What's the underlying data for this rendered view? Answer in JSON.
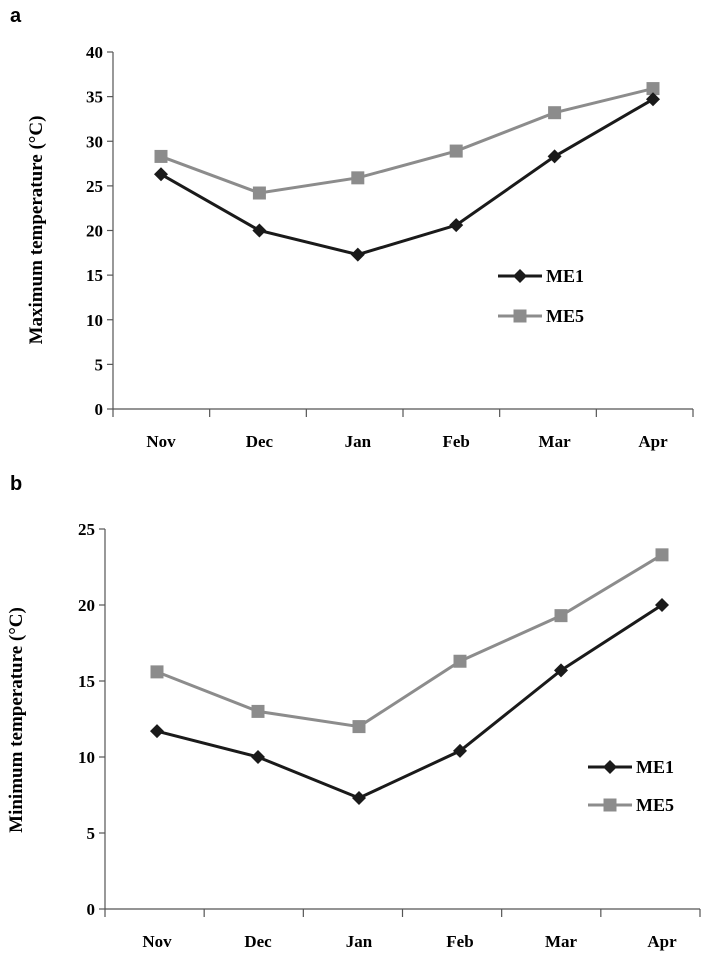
{
  "chart_data": [
    {
      "type": "line",
      "panel_label": "a",
      "categories": [
        "Nov",
        "Dec",
        "Jan",
        "Feb",
        "Mar",
        "Apr"
      ],
      "series": [
        {
          "name": "ME1",
          "values": [
            26.3,
            20.0,
            17.3,
            20.6,
            28.3,
            34.7
          ],
          "color": "#1a1a1a",
          "marker": "diamond"
        },
        {
          "name": "ME5",
          "values": [
            28.3,
            24.2,
            25.9,
            28.9,
            33.2,
            35.9
          ],
          "color": "#8c8c8c",
          "marker": "square"
        }
      ],
      "ylabel": "Maximum temperature (°C)",
      "ylim": [
        0,
        40
      ],
      "yticks": [
        0,
        5,
        10,
        15,
        20,
        25,
        30,
        35,
        40
      ],
      "ytick_labels": [
        "0",
        "5",
        "10",
        "15",
        "20",
        "25",
        "30",
        "35",
        "40"
      ],
      "grid": false,
      "legend": "center-right"
    },
    {
      "type": "line",
      "panel_label": "b",
      "categories": [
        "Nov",
        "Dec",
        "Jan",
        "Feb",
        "Mar",
        "Apr"
      ],
      "series": [
        {
          "name": "ME1",
          "values": [
            11.7,
            10.0,
            7.3,
            10.4,
            15.7,
            20.0
          ],
          "color": "#1a1a1a",
          "marker": "diamond"
        },
        {
          "name": "ME5",
          "values": [
            15.6,
            13.0,
            12.0,
            16.3,
            19.3,
            23.3
          ],
          "color": "#8c8c8c",
          "marker": "square"
        }
      ],
      "ylabel": "Minimum temperature (°C)",
      "ylim": [
        0,
        25
      ],
      "yticks": [
        0,
        5,
        10,
        15,
        20,
        25
      ],
      "ytick_labels": [
        "0",
        "5",
        "10",
        "15",
        "20",
        "25"
      ],
      "grid": false,
      "legend": "bottom-right"
    }
  ]
}
